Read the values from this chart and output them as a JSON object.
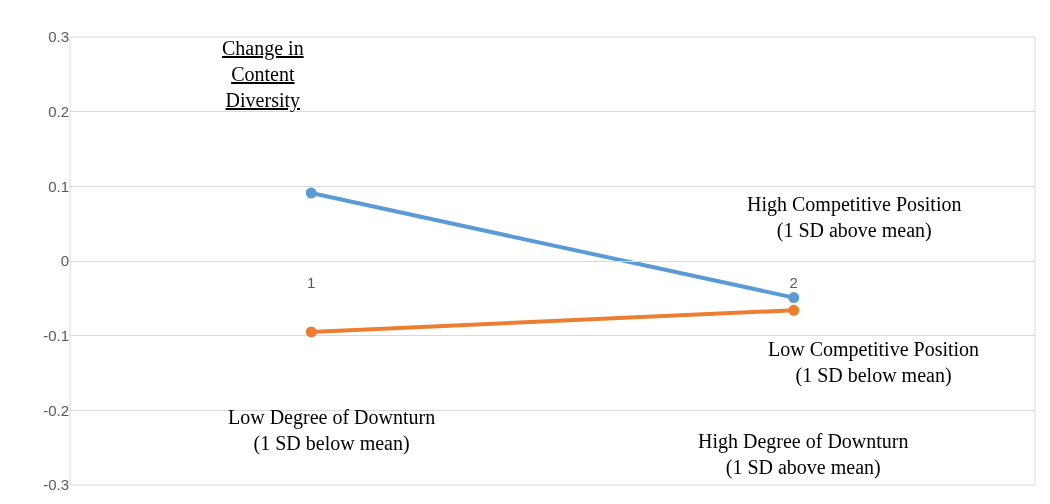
{
  "chart_data": {
    "type": "line",
    "ylabel": "Change in Content Diversity",
    "categories": [
      "1",
      "2"
    ],
    "series": [
      {
        "name": "High Competitive Position (1 SD above mean)",
        "color": "#5b9bd5",
        "values": [
          0.091,
          -0.049
        ]
      },
      {
        "name": "Low Competitive Position (1 SD below mean)",
        "color": "#ed7d31",
        "values": [
          -0.095,
          -0.066
        ]
      }
    ],
    "annotations": [
      "Low Degree of Downturn (1 SD below mean)",
      "High Degree of Downturn (1 SD above mean)"
    ],
    "ylim": [
      -0.3,
      0.3
    ],
    "yticks": [
      {
        "value": -0.3,
        "label": "-0.3"
      },
      {
        "value": -0.2,
        "label": "-0.2"
      },
      {
        "value": -0.1,
        "label": "-0.1"
      },
      {
        "value": 0,
        "label": "0"
      },
      {
        "value": 0.1,
        "label": "0.1"
      },
      {
        "value": 0.2,
        "label": "0.2"
      },
      {
        "value": 0.3,
        "label": "0.3"
      }
    ],
    "grid": "y",
    "legend": false,
    "marker": "circle",
    "line_style": "solid"
  }
}
